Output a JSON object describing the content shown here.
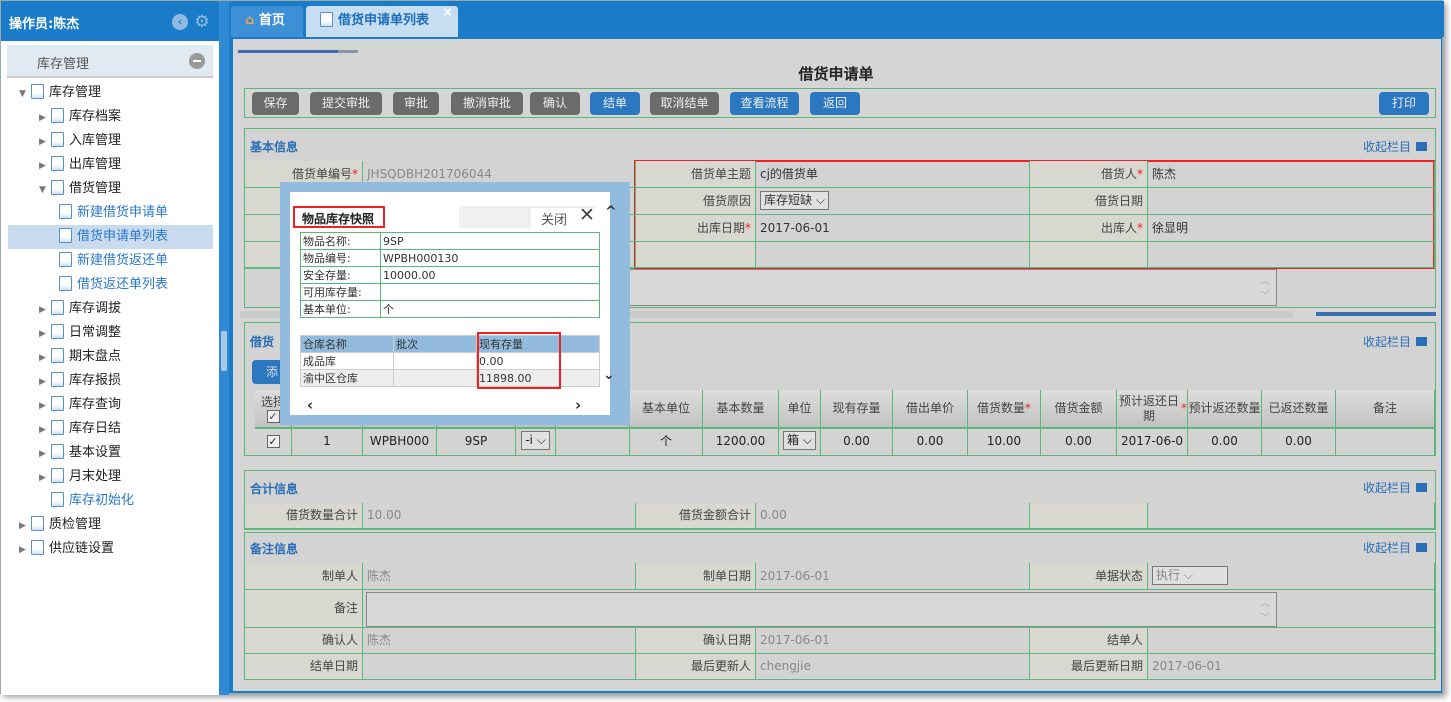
{
  "sidebar": {
    "operator": "操作员:陈杰",
    "module": "库存管理",
    "items": [
      {
        "label": "库存管理",
        "level": 0,
        "expanded": true
      },
      {
        "label": "库存档案",
        "level": 1
      },
      {
        "label": "入库管理",
        "level": 1
      },
      {
        "label": "出库管理",
        "level": 1
      },
      {
        "label": "借货管理",
        "level": 1,
        "expanded": true
      },
      {
        "label": "新建借货申请单",
        "level": 2
      },
      {
        "label": "借货申请单列表",
        "level": 2,
        "selected": true
      },
      {
        "label": "新建借货返还单",
        "level": 2
      },
      {
        "label": "借货返还单列表",
        "level": 2
      },
      {
        "label": "库存调拔",
        "level": 1
      },
      {
        "label": "日常调整",
        "level": 1
      },
      {
        "label": "期末盘点",
        "level": 1
      },
      {
        "label": "库存报损",
        "level": 1
      },
      {
        "label": "库存查询",
        "level": 1
      },
      {
        "label": "库存日结",
        "level": 1
      },
      {
        "label": "基本设置",
        "level": 1
      },
      {
        "label": "月末处理",
        "level": 1
      },
      {
        "label": "库存初始化",
        "level": 1,
        "leaf": true
      },
      {
        "label": "质检管理",
        "level": 0
      },
      {
        "label": "供应链设置",
        "level": 0
      }
    ]
  },
  "tabs": [
    {
      "label": "首页",
      "icon": "home-icon"
    },
    {
      "label": "借货申请单列表",
      "icon": "document-icon",
      "active": true,
      "close": "×"
    }
  ],
  "page_title": "借货申请单",
  "toolbar": {
    "buttons": [
      {
        "label": "保存"
      },
      {
        "label": "提交审批"
      },
      {
        "label": "审批"
      },
      {
        "label": "撤消审批"
      },
      {
        "label": "确认"
      },
      {
        "label": "结单",
        "style": "blue"
      },
      {
        "label": "取消结单"
      },
      {
        "label": "查看流程",
        "style": "blue"
      },
      {
        "label": "返回",
        "style": "blue"
      }
    ],
    "print": "打印"
  },
  "collapse_label": "收起栏目",
  "basic": {
    "title": "基本信息",
    "no_label": "借货单编号",
    "no_value": "JHSQDBH201706044",
    "subject_label": "借货单主题",
    "subject_value": "cj的借货单",
    "borrower_label": "借货人",
    "borrower_value": "陈杰",
    "reason_label": "借货原因",
    "reason_value": "库存短缺",
    "date_label": "借货日期",
    "out_date_label": "出库日期",
    "out_date_value": "2017-06-01",
    "out_person_label": "出库人",
    "out_person_value": "徐显明"
  },
  "detail": {
    "title": "借货",
    "add_button": "添",
    "headers": [
      "选择",
      "",
      "",
      "",
      "",
      "",
      "基本单位",
      "基本数量",
      "单位",
      "现有存量",
      "借出单价",
      "借货数量",
      "借货金额",
      "预计返还日期",
      "预计返还数量",
      "已返还数量",
      "备注"
    ],
    "rows": [
      {
        "index": "1",
        "code": "WPBH000",
        "name": "9SP",
        "sel": "-i",
        "unit_basic": "个",
        "qty_basic": "1200.00",
        "unit": "箱",
        "stock": "0.00",
        "price": "0.00",
        "qty": "10.00",
        "amount": "0.00",
        "return_date": "2017-06-0",
        "return_qty": "0.00",
        "returned": "0.00",
        "note": ""
      }
    ]
  },
  "totals": {
    "title": "合计信息",
    "qty_label": "借货数量合计",
    "qty_value": "10.00",
    "amount_label": "借货金额合计",
    "amount_value": "0.00"
  },
  "remarks": {
    "title": "备注信息",
    "creator_label": "制单人",
    "creator_value": "陈杰",
    "create_date_label": "制单日期",
    "create_date_value": "2017-06-01",
    "status_label": "单据状态",
    "status_value": "执行",
    "note_label": "备注",
    "confirmer_label": "确认人",
    "confirmer_value": "陈杰",
    "confirm_date_label": "确认日期",
    "confirm_date_value": "2017-06-01",
    "closer_label": "结单人",
    "close_date_label": "结单日期",
    "updater_label": "最后更新人",
    "updater_value": "chengjie",
    "update_date_label": "最后更新日期",
    "update_date_value": "2017-06-01"
  },
  "popup": {
    "title": "物品库存快照",
    "close": "关闭",
    "info": [
      [
        "物品名称:",
        "9SP"
      ],
      [
        "物品编号:",
        "WPBH000130"
      ],
      [
        "安全存量:",
        "10000.00"
      ],
      [
        "可用库存量:",
        ""
      ],
      [
        "基本单位:",
        "个"
      ]
    ],
    "headers": [
      "仓库名称",
      "批次",
      "现有存量"
    ],
    "rows": [
      [
        "成品库",
        "",
        "0.00"
      ],
      [
        "渝中区仓库",
        "",
        "11898.00"
      ]
    ]
  }
}
